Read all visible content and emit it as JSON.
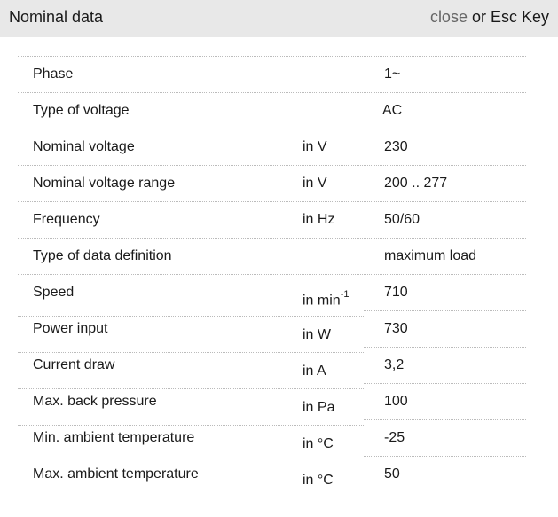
{
  "header": {
    "title": "Nominal data",
    "close_link": "close",
    "close_suffix": " or Esc Key"
  },
  "rows": [
    {
      "label": "Phase",
      "unit": "",
      "value": "1~"
    },
    {
      "label": "Type of voltage",
      "unit": "",
      "value": "AC"
    },
    {
      "label": "Nominal voltage",
      "unit": "in V",
      "value": "230"
    },
    {
      "label": "Nominal voltage range",
      "unit": "in V",
      "value": "200 .. 277"
    },
    {
      "label": "Frequency",
      "unit": "in Hz",
      "value": "50/60"
    },
    {
      "label": "Type of data definition",
      "unit": "",
      "value": "maximum load"
    },
    {
      "label": "Speed",
      "unit": "in min",
      "unit_sup": "-1",
      "value": "710"
    },
    {
      "label": "Power input",
      "unit": "in W",
      "value": "730"
    },
    {
      "label": "Current draw",
      "unit": "in A",
      "value": "3,2"
    },
    {
      "label": "Max. back pressure",
      "unit": "in Pa",
      "value": "100"
    },
    {
      "label": "Min. ambient temperature",
      "unit": "in °C",
      "value": "-25"
    },
    {
      "label": "Max. ambient temperature",
      "unit": "in °C",
      "value": "50"
    }
  ]
}
